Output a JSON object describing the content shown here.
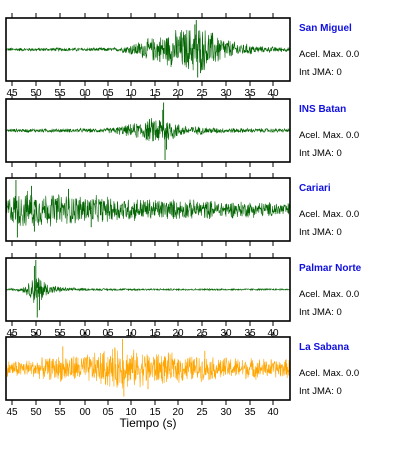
{
  "chart_data": {
    "type": "line",
    "xlabel": "Tiempo (s)",
    "tick_labels": [
      "45",
      "50",
      "55",
      "00",
      "05",
      "10",
      "15",
      "20",
      "25",
      "30",
      "35",
      "40"
    ],
    "panels": [
      {
        "station": "San Miguel",
        "acel_label": "Acel. Max.",
        "acel_value": "0.0",
        "int_label": "Int JMA:",
        "int_value": "0",
        "color": "#006400",
        "show_tick_labels": true,
        "envelope": [
          [
            0,
            0.06
          ],
          [
            0.4,
            0.07
          ],
          [
            0.45,
            0.25
          ],
          [
            0.55,
            0.55
          ],
          [
            0.62,
            0.8
          ],
          [
            0.68,
            0.9
          ],
          [
            0.72,
            0.7
          ],
          [
            0.8,
            0.3
          ],
          [
            0.9,
            0.12
          ],
          [
            1,
            0.08
          ]
        ],
        "spikes": [
          [
            0.67,
            1.0
          ],
          [
            0.675,
            -0.95
          ],
          [
            0.665,
            0.85
          ],
          [
            0.685,
            -0.8
          ]
        ]
      },
      {
        "station": "INS Batan",
        "acel_label": "Acel. Max.",
        "acel_value": "0.0",
        "int_label": "Int JMA:",
        "int_value": "0",
        "color": "#006400",
        "show_tick_labels": false,
        "envelope": [
          [
            0,
            0.06
          ],
          [
            0.35,
            0.08
          ],
          [
            0.42,
            0.2
          ],
          [
            0.48,
            0.35
          ],
          [
            0.53,
            0.55
          ],
          [
            0.57,
            0.45
          ],
          [
            0.62,
            0.2
          ],
          [
            0.75,
            0.1
          ],
          [
            1,
            0.07
          ]
        ],
        "spikes": [
          [
            0.555,
            0.95
          ],
          [
            0.56,
            -1.0
          ],
          [
            0.552,
            0.7
          ],
          [
            0.565,
            -0.65
          ]
        ]
      },
      {
        "station": "Cariari",
        "acel_label": "Acel. Max.",
        "acel_value": "0.0",
        "int_label": "Int JMA:",
        "int_value": "0",
        "color": "#006400",
        "show_tick_labels": false,
        "envelope": [
          [
            0,
            0.45
          ],
          [
            0.05,
            0.7
          ],
          [
            0.12,
            0.65
          ],
          [
            0.25,
            0.55
          ],
          [
            0.4,
            0.45
          ],
          [
            0.6,
            0.38
          ],
          [
            0.8,
            0.32
          ],
          [
            1,
            0.25
          ]
        ],
        "spikes": [
          [
            0.035,
            1.0
          ],
          [
            0.04,
            -0.95
          ],
          [
            0.09,
            0.8
          ],
          [
            0.1,
            -0.75
          ],
          [
            0.22,
            0.7
          ],
          [
            0.3,
            -0.6
          ]
        ]
      },
      {
        "station": "Palmar Norte",
        "acel_label": "Acel. Max.",
        "acel_value": "0.0",
        "int_label": "Int JMA:",
        "int_value": "0",
        "color": "#006400",
        "show_tick_labels": true,
        "envelope": [
          [
            0,
            0.03
          ],
          [
            0.05,
            0.06
          ],
          [
            0.08,
            0.25
          ],
          [
            0.1,
            0.6
          ],
          [
            0.12,
            0.5
          ],
          [
            0.15,
            0.2
          ],
          [
            0.2,
            0.08
          ],
          [
            0.3,
            0.04
          ],
          [
            1,
            0.03
          ]
        ],
        "spikes": [
          [
            0.105,
            1.0
          ],
          [
            0.11,
            -0.95
          ],
          [
            0.1,
            0.8
          ],
          [
            0.118,
            -0.7
          ]
        ]
      },
      {
        "station": "La Sabana",
        "acel_label": "Acel. Max.",
        "acel_value": "0.0",
        "int_label": "Int JMA:",
        "int_value": "0",
        "color": "#FFA500",
        "show_tick_labels": true,
        "envelope": [
          [
            0,
            0.3
          ],
          [
            0.1,
            0.35
          ],
          [
            0.2,
            0.5
          ],
          [
            0.3,
            0.55
          ],
          [
            0.38,
            0.8
          ],
          [
            0.45,
            0.7
          ],
          [
            0.55,
            0.6
          ],
          [
            0.7,
            0.45
          ],
          [
            0.85,
            0.4
          ],
          [
            1,
            0.35
          ]
        ],
        "spikes": [
          [
            0.41,
            1.0
          ],
          [
            0.415,
            -0.95
          ],
          [
            0.2,
            0.75
          ],
          [
            0.5,
            -0.7
          ],
          [
            0.7,
            0.6
          ]
        ]
      }
    ]
  }
}
